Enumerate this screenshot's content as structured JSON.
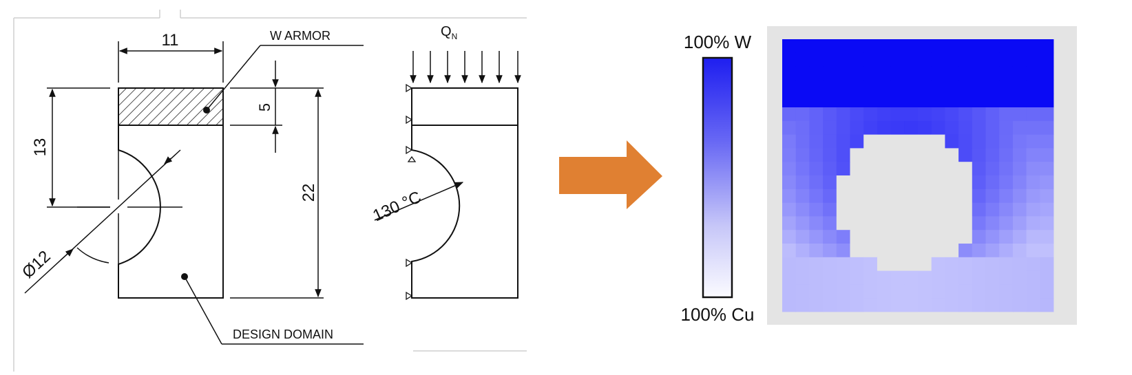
{
  "drawing": {
    "dim_width": "11",
    "dim_height_total": "13",
    "dim_armor_thickness": "5",
    "dim_total_height": "22",
    "dim_diameter": "Ø12",
    "label_armor": "W ARMOR",
    "label_domain": "DESIGN DOMAIN"
  },
  "boundary": {
    "load_label": "Q",
    "load_subscript": "N",
    "temperature_label": "130 °C"
  },
  "result": {
    "legend_top": "100% W",
    "legend_bottom": "100% Cu",
    "colors": {
      "tungsten": "#0a0af5",
      "copper": "#f8f8ff",
      "void": "#e4e4e4",
      "arrow": "#e08032"
    }
  }
}
